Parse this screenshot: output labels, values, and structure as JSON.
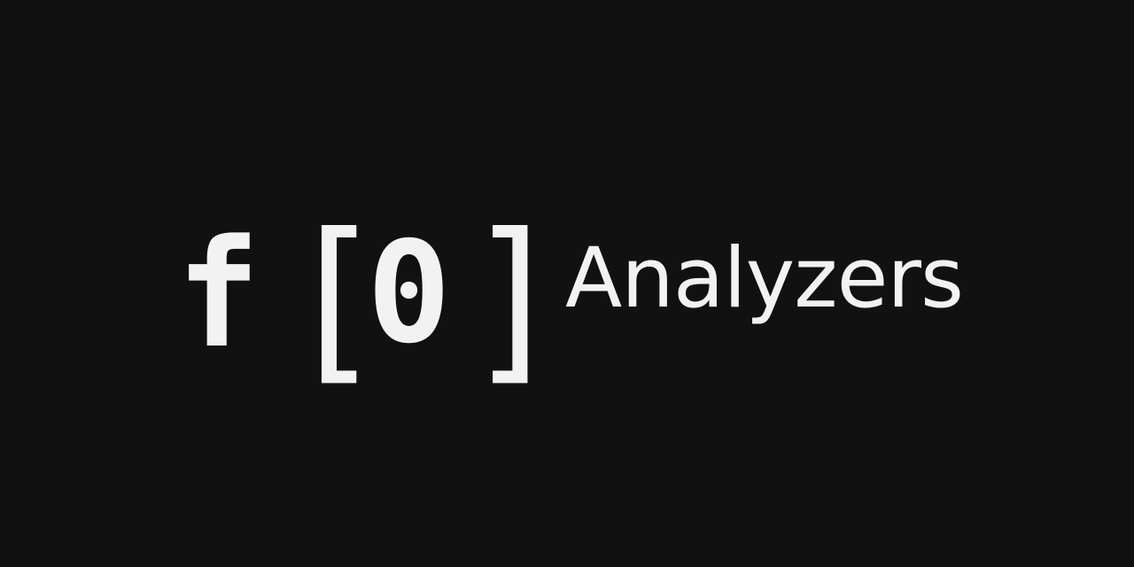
{
  "logo": {
    "mark_f": "f",
    "mark_bracket_open": "[",
    "mark_zero": "0",
    "mark_bracket_close": "]",
    "wordmark": "Analyzers"
  },
  "colors": {
    "background": "#111111",
    "foreground": "#f2f2f2"
  }
}
